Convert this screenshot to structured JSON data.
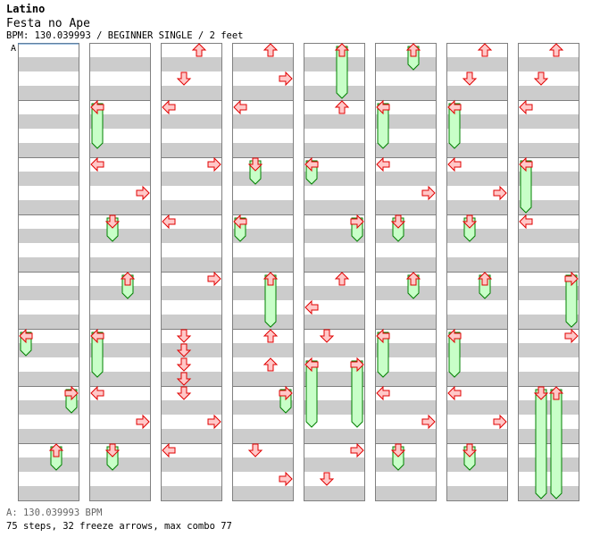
{
  "header": {
    "artist": "Latino",
    "title": "Festa no Ape",
    "info": "BPM: 130.039993 / BEGINNER SINGLE / 2 feet"
  },
  "bpm_marker": {
    "label": "A"
  },
  "footer": {
    "bpm_line": "A: 130.039993 BPM",
    "stats_line": "75 steps, 32 freeze arrows, max combo 77"
  },
  "colors": {
    "arrow_fill": "#ffc8c8",
    "arrow_stroke": "#e00000",
    "freeze_fill": "#c8ffc8",
    "freeze_stroke": "#008000",
    "stripe": "#cccccc",
    "border": "#808080",
    "bpm_line": "#4080c0"
  },
  "chart_data": {
    "type": "step-chart",
    "title": "Festa no Ape",
    "artist": "Latino",
    "bpm": 130.039993,
    "difficulty": "BEGINNER SINGLE",
    "feet": 2,
    "lanes": [
      "left",
      "down",
      "up",
      "right"
    ],
    "total_measures": 64,
    "columns": 8,
    "measures_per_column": 8,
    "totals": {
      "steps": 75,
      "freeze_arrows": 32,
      "max_combo": 77
    },
    "notes": [
      {
        "col": 0,
        "m": 5,
        "b": 0,
        "lane": "left",
        "len": 1.5
      },
      {
        "col": 0,
        "m": 6,
        "b": 0,
        "lane": "right",
        "len": 1.5
      },
      {
        "col": 0,
        "m": 7,
        "b": 0,
        "lane": "up",
        "len": 1.5
      },
      {
        "col": 1,
        "m": 1,
        "b": 0,
        "lane": "left",
        "len": 3
      },
      {
        "col": 1,
        "m": 2,
        "b": 0,
        "lane": "left"
      },
      {
        "col": 1,
        "m": 2,
        "b": 2,
        "lane": "right"
      },
      {
        "col": 1,
        "m": 3,
        "b": 0,
        "lane": "down",
        "len": 1.5
      },
      {
        "col": 1,
        "m": 4,
        "b": 0,
        "lane": "up",
        "len": 1.5
      },
      {
        "col": 1,
        "m": 5,
        "b": 0,
        "lane": "left",
        "len": 3
      },
      {
        "col": 1,
        "m": 6,
        "b": 0,
        "lane": "left"
      },
      {
        "col": 1,
        "m": 6,
        "b": 2,
        "lane": "right"
      },
      {
        "col": 1,
        "m": 7,
        "b": 0,
        "lane": "down",
        "len": 1.5
      },
      {
        "col": 2,
        "m": 0,
        "b": 0,
        "lane": "up"
      },
      {
        "col": 2,
        "m": 0,
        "b": 2,
        "lane": "down"
      },
      {
        "col": 2,
        "m": 1,
        "b": 0,
        "lane": "left"
      },
      {
        "col": 2,
        "m": 2,
        "b": 0,
        "lane": "right"
      },
      {
        "col": 2,
        "m": 3,
        "b": 0,
        "lane": "left"
      },
      {
        "col": 2,
        "m": 4,
        "b": 0,
        "lane": "right"
      },
      {
        "col": 2,
        "m": 5,
        "b": 0,
        "lane": "down"
      },
      {
        "col": 2,
        "m": 5,
        "b": 1,
        "lane": "down"
      },
      {
        "col": 2,
        "m": 5,
        "b": 2,
        "lane": "down"
      },
      {
        "col": 2,
        "m": 5,
        "b": 3,
        "lane": "down"
      },
      {
        "col": 2,
        "m": 6,
        "b": 0,
        "lane": "down"
      },
      {
        "col": 2,
        "m": 6,
        "b": 2,
        "lane": "right"
      },
      {
        "col": 2,
        "m": 7,
        "b": 0,
        "lane": "left"
      },
      {
        "col": 3,
        "m": 0,
        "b": 0,
        "lane": "up"
      },
      {
        "col": 3,
        "m": 0,
        "b": 2,
        "lane": "right"
      },
      {
        "col": 3,
        "m": 1,
        "b": 0,
        "lane": "left"
      },
      {
        "col": 3,
        "m": 2,
        "b": 0,
        "lane": "down",
        "len": 1.5
      },
      {
        "col": 3,
        "m": 3,
        "b": 0,
        "lane": "left",
        "len": 1.5
      },
      {
        "col": 3,
        "m": 4,
        "b": 0,
        "lane": "up",
        "len": 3.5
      },
      {
        "col": 3,
        "m": 5,
        "b": 0,
        "lane": "up"
      },
      {
        "col": 3,
        "m": 5,
        "b": 2,
        "lane": "up"
      },
      {
        "col": 3,
        "m": 6,
        "b": 0,
        "lane": "right",
        "len": 1.5
      },
      {
        "col": 3,
        "m": 7,
        "b": 0,
        "lane": "down"
      },
      {
        "col": 3,
        "m": 7,
        "b": 2,
        "lane": "right"
      },
      {
        "col": 4,
        "m": 0,
        "b": 0,
        "lane": "up",
        "len": 3.5
      },
      {
        "col": 4,
        "m": 1,
        "b": 0,
        "lane": "up"
      },
      {
        "col": 4,
        "m": 2,
        "b": 0,
        "lane": "left",
        "len": 1.5
      },
      {
        "col": 4,
        "m": 3,
        "b": 0,
        "lane": "right",
        "len": 1.5
      },
      {
        "col": 4,
        "m": 4,
        "b": 0,
        "lane": "up"
      },
      {
        "col": 4,
        "m": 4,
        "b": 2,
        "lane": "left"
      },
      {
        "col": 4,
        "m": 5,
        "b": 0,
        "lane": "down"
      },
      {
        "col": 4,
        "m": 5,
        "b": 2,
        "lane": "left",
        "len": 4.5
      },
      {
        "col": 4,
        "m": 5,
        "b": 2,
        "lane": "right",
        "len": 4.5
      },
      {
        "col": 4,
        "m": 7,
        "b": 0,
        "lane": "right"
      },
      {
        "col": 4,
        "m": 7,
        "b": 2,
        "lane": "down"
      },
      {
        "col": 5,
        "m": 0,
        "b": 0,
        "lane": "up",
        "len": 1.5
      },
      {
        "col": 5,
        "m": 1,
        "b": 0,
        "lane": "left",
        "len": 3
      },
      {
        "col": 5,
        "m": 2,
        "b": 0,
        "lane": "left"
      },
      {
        "col": 5,
        "m": 2,
        "b": 2,
        "lane": "right"
      },
      {
        "col": 5,
        "m": 3,
        "b": 0,
        "lane": "down",
        "len": 1.5
      },
      {
        "col": 5,
        "m": 4,
        "b": 0,
        "lane": "up",
        "len": 1.5
      },
      {
        "col": 5,
        "m": 5,
        "b": 0,
        "lane": "left",
        "len": 3
      },
      {
        "col": 5,
        "m": 6,
        "b": 0,
        "lane": "left"
      },
      {
        "col": 5,
        "m": 6,
        "b": 2,
        "lane": "right"
      },
      {
        "col": 5,
        "m": 7,
        "b": 0,
        "lane": "down",
        "len": 1.5
      },
      {
        "col": 6,
        "m": 0,
        "b": 0,
        "lane": "up"
      },
      {
        "col": 6,
        "m": 0,
        "b": 2,
        "lane": "down"
      },
      {
        "col": 6,
        "m": 1,
        "b": 0,
        "lane": "left",
        "len": 3
      },
      {
        "col": 6,
        "m": 2,
        "b": 0,
        "lane": "left"
      },
      {
        "col": 6,
        "m": 2,
        "b": 2,
        "lane": "right"
      },
      {
        "col": 6,
        "m": 3,
        "b": 0,
        "lane": "down",
        "len": 1.5
      },
      {
        "col": 6,
        "m": 4,
        "b": 0,
        "lane": "up",
        "len": 1.5
      },
      {
        "col": 6,
        "m": 5,
        "b": 0,
        "lane": "left",
        "len": 3
      },
      {
        "col": 6,
        "m": 6,
        "b": 0,
        "lane": "left"
      },
      {
        "col": 6,
        "m": 6,
        "b": 2,
        "lane": "right"
      },
      {
        "col": 6,
        "m": 7,
        "b": 0,
        "lane": "down",
        "len": 1.5
      },
      {
        "col": 7,
        "m": 0,
        "b": 0,
        "lane": "up"
      },
      {
        "col": 7,
        "m": 0,
        "b": 2,
        "lane": "down"
      },
      {
        "col": 7,
        "m": 1,
        "b": 0,
        "lane": "left"
      },
      {
        "col": 7,
        "m": 2,
        "b": 0,
        "lane": "left",
        "len": 3.5
      },
      {
        "col": 7,
        "m": 3,
        "b": 0,
        "lane": "left"
      },
      {
        "col": 7,
        "m": 4,
        "b": 0,
        "lane": "right",
        "len": 3.5
      },
      {
        "col": 7,
        "m": 5,
        "b": 0,
        "lane": "right"
      },
      {
        "col": 7,
        "m": 6,
        "b": 0,
        "lane": "down",
        "len": 7.5
      },
      {
        "col": 7,
        "m": 6,
        "b": 0,
        "lane": "up",
        "len": 7.5
      }
    ]
  }
}
